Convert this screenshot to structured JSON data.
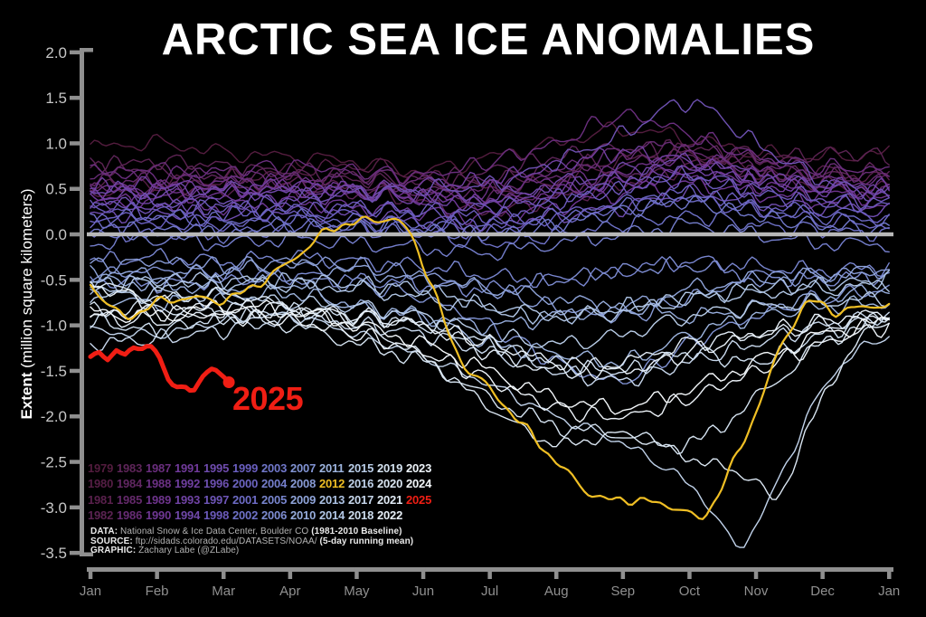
{
  "title": "ARCTIC SEA ICE ANOMALIES",
  "y_axis": {
    "label_bold": "Extent",
    "label_rest": " (million square kilometers)",
    "ticks": [
      "2.0",
      "1.5",
      "1.0",
      "0.5",
      "0.0",
      "-0.5",
      "-1.0",
      "-1.5",
      "-2.0",
      "-2.5",
      "-3.0",
      "-3.5"
    ]
  },
  "x_axis": {
    "ticks": [
      "Jan",
      "Feb",
      "Mar",
      "Apr",
      "May",
      "Jun",
      "Jul",
      "Aug",
      "Sep",
      "Oct",
      "Nov",
      "Dec",
      "Jan"
    ]
  },
  "credits": [
    {
      "label": "DATA:",
      "text": " National Snow & Ice Data Center, Boulder CO ",
      "suffix": "(1981-2010 Baseline)"
    },
    {
      "label": "SOURCE:",
      "text": " ftp://sidads.colorado.edu/DATASETS/NOAA/ ",
      "suffix": "(5-day running mean)"
    },
    {
      "label": "GRAPHIC:",
      "text": " Zachary Labe (@ZLabe)",
      "suffix": ""
    }
  ],
  "colors": {
    "background": "#000000",
    "title": "#ffffff",
    "zero_line": "#b8b8b8",
    "axis": "#8f8f8f",
    "y_tick_label": "#c6c6c6",
    "month_label": "#909090",
    "highlight_2012": "#f0bf24",
    "highlight_2025": "#f01e14"
  },
  "chart_data": {
    "type": "line",
    "title": "ARCTIC SEA ICE ANOMALIES",
    "ylabel": "Extent (million square kilometers)",
    "ylim": [
      -3.5,
      2.0
    ],
    "categories": [
      "Jan",
      "Feb",
      "Mar",
      "Apr",
      "May",
      "Jun",
      "Jul",
      "Aug",
      "Sep",
      "Oct",
      "Nov",
      "Dec",
      "Jan"
    ],
    "x_unit": "month index, 0 = Jan 1 through 12 = following Jan",
    "zero_baseline": 0.0,
    "grid": "off",
    "legend_position": "lower-left, 4-row column-major year grid",
    "highlight_label": "2025",
    "series": [
      {
        "name": "1979",
        "color": "#531c3e",
        "values": [
          0.95,
          1.0,
          0.9,
          0.85,
          0.8,
          0.7,
          0.85,
          1.0,
          1.15,
          1.05,
          0.9,
          0.85,
          0.9
        ]
      },
      {
        "name": "1980",
        "color": "#561e45",
        "values": [
          0.45,
          0.55,
          0.6,
          0.7,
          0.75,
          0.65,
          0.5,
          0.6,
          0.8,
          0.9,
          0.7,
          0.55,
          0.5
        ]
      },
      {
        "name": "1981",
        "color": "#59204c",
        "values": [
          0.55,
          0.45,
          0.5,
          0.55,
          0.5,
          0.35,
          0.25,
          0.4,
          0.55,
          0.75,
          0.9,
          0.7,
          0.6
        ]
      },
      {
        "name": "1982",
        "color": "#5b2352",
        "values": [
          0.7,
          0.8,
          0.75,
          0.65,
          0.6,
          0.55,
          0.6,
          0.7,
          0.85,
          0.95,
          0.8,
          0.9,
          0.85
        ]
      },
      {
        "name": "1983",
        "color": "#5e2559",
        "values": [
          0.8,
          0.7,
          0.65,
          0.7,
          0.65,
          0.6,
          0.7,
          0.85,
          0.95,
          0.85,
          0.7,
          0.65,
          0.7
        ]
      },
      {
        "name": "1984",
        "color": "#612762",
        "values": [
          0.6,
          0.5,
          0.55,
          0.5,
          0.45,
          0.5,
          0.4,
          0.5,
          0.65,
          0.8,
          0.65,
          0.5,
          0.45
        ]
      },
      {
        "name": "1985",
        "color": "#64296b",
        "values": [
          0.5,
          0.6,
          0.55,
          0.6,
          0.55,
          0.45,
          0.5,
          0.65,
          0.75,
          0.9,
          0.75,
          0.65,
          0.6
        ]
      },
      {
        "name": "1986",
        "color": "#672c75",
        "values": [
          0.65,
          0.7,
          0.65,
          0.6,
          0.65,
          0.6,
          0.55,
          0.7,
          0.9,
          1.0,
          0.85,
          0.7,
          0.65
        ]
      },
      {
        "name": "1987",
        "color": "#6a2e7e",
        "values": [
          0.7,
          0.65,
          0.7,
          0.75,
          0.7,
          0.65,
          0.8,
          1.0,
          1.3,
          1.1,
          0.85,
          0.75,
          0.7
        ]
      },
      {
        "name": "1988",
        "color": "#6c3185",
        "values": [
          0.55,
          0.5,
          0.6,
          0.55,
          0.5,
          0.45,
          0.5,
          0.6,
          0.7,
          0.85,
          0.7,
          0.6,
          0.55
        ]
      },
      {
        "name": "1989",
        "color": "#6e348d",
        "values": [
          0.35,
          0.4,
          0.45,
          0.5,
          0.45,
          0.4,
          0.35,
          0.45,
          0.55,
          0.65,
          0.55,
          0.45,
          0.4
        ]
      },
      {
        "name": "1990",
        "color": "#6f3794",
        "values": [
          0.4,
          0.35,
          0.3,
          0.35,
          0.3,
          0.25,
          0.2,
          0.3,
          0.45,
          0.55,
          0.45,
          0.35,
          0.3
        ]
      },
      {
        "name": "1991",
        "color": "#713a9b",
        "values": [
          0.45,
          0.5,
          0.45,
          0.4,
          0.45,
          0.4,
          0.35,
          0.45,
          0.6,
          0.7,
          0.55,
          0.5,
          0.45
        ]
      },
      {
        "name": "1992",
        "color": "#703fa0",
        "values": [
          0.5,
          0.55,
          0.5,
          0.55,
          0.5,
          0.55,
          0.6,
          0.75,
          0.9,
          0.8,
          0.65,
          0.55,
          0.5
        ]
      },
      {
        "name": "1993",
        "color": "#7043a5",
        "values": [
          0.45,
          0.4,
          0.45,
          0.5,
          0.45,
          0.4,
          0.35,
          0.5,
          0.6,
          0.7,
          0.6,
          0.5,
          0.45
        ]
      },
      {
        "name": "1994",
        "color": "#7048a9",
        "values": [
          0.5,
          0.45,
          0.5,
          0.45,
          0.5,
          0.45,
          0.4,
          0.55,
          0.7,
          0.8,
          0.65,
          0.55,
          0.5
        ]
      },
      {
        "name": "1995",
        "color": "#6f4cae",
        "values": [
          0.2,
          0.25,
          0.2,
          0.25,
          0.2,
          0.15,
          0.1,
          0.2,
          0.3,
          0.45,
          0.35,
          0.3,
          0.25
        ]
      },
      {
        "name": "1996",
        "color": "#6e51b2",
        "values": [
          0.35,
          0.3,
          0.35,
          0.4,
          0.45,
          0.5,
          0.55,
          0.8,
          1.1,
          1.45,
          1.0,
          0.6,
          0.4
        ]
      },
      {
        "name": "1997",
        "color": "#6d55b7",
        "values": [
          0.3,
          0.35,
          0.3,
          0.35,
          0.3,
          0.25,
          0.3,
          0.4,
          0.55,
          0.65,
          0.5,
          0.4,
          0.35
        ]
      },
      {
        "name": "1998",
        "color": "#6b5abb",
        "values": [
          0.3,
          0.25,
          0.3,
          0.25,
          0.3,
          0.25,
          0.2,
          0.35,
          0.5,
          0.6,
          0.45,
          0.35,
          0.3
        ]
      },
      {
        "name": "1999",
        "color": "#6a5fc0",
        "values": [
          0.2,
          0.15,
          0.2,
          0.25,
          0.2,
          0.15,
          0.1,
          0.2,
          0.35,
          0.45,
          0.3,
          0.25,
          0.2
        ]
      },
      {
        "name": "2000",
        "color": "#6c65c2",
        "values": [
          0.1,
          0.15,
          0.1,
          0.15,
          0.1,
          0.05,
          0.1,
          0.2,
          0.3,
          0.4,
          0.25,
          0.15,
          0.1
        ]
      },
      {
        "name": "2001",
        "color": "#6d6bc5",
        "values": [
          0.15,
          0.2,
          0.15,
          0.2,
          0.15,
          0.1,
          0.05,
          0.15,
          0.3,
          0.4,
          0.3,
          0.2,
          0.15
        ]
      },
      {
        "name": "2002",
        "color": "#6e71c7",
        "values": [
          0.05,
          0.0,
          0.05,
          0.1,
          0.05,
          0.0,
          -0.1,
          0.0,
          0.1,
          0.2,
          0.1,
          0.05,
          0.0
        ]
      },
      {
        "name": "2003",
        "color": "#7077c9",
        "values": [
          0.0,
          0.05,
          0.0,
          0.05,
          0.1,
          0.05,
          0.0,
          0.1,
          0.25,
          0.35,
          0.2,
          0.1,
          0.05
        ]
      },
      {
        "name": "2004",
        "color": "#747ecc",
        "values": [
          -0.1,
          -0.05,
          -0.1,
          -0.05,
          -0.1,
          -0.15,
          -0.2,
          -0.1,
          0.0,
          0.1,
          0.0,
          -0.1,
          -0.1
        ]
      },
      {
        "name": "2005",
        "color": "#7885ce",
        "values": [
          -0.3,
          -0.25,
          -0.3,
          -0.25,
          -0.3,
          -0.35,
          -0.45,
          -0.5,
          -0.4,
          -0.3,
          -0.35,
          -0.4,
          -0.35
        ]
      },
      {
        "name": "2006",
        "color": "#7d8cd1",
        "values": [
          -0.5,
          -0.55,
          -0.5,
          -0.45,
          -0.5,
          -0.55,
          -0.6,
          -0.5,
          -0.4,
          -0.35,
          -0.45,
          -0.5,
          -0.45
        ]
      },
      {
        "name": "2007",
        "color": "#8193d3",
        "values": [
          -0.45,
          -0.4,
          -0.45,
          -0.5,
          -0.55,
          -0.7,
          -1.0,
          -1.4,
          -1.6,
          -1.2,
          -0.9,
          -0.7,
          -0.6
        ]
      },
      {
        "name": "2008",
        "color": "#889bd6",
        "values": [
          -0.35,
          -0.3,
          -0.35,
          -0.3,
          -0.35,
          -0.45,
          -0.6,
          -0.8,
          -0.9,
          -0.7,
          -0.5,
          -0.45,
          -0.4
        ]
      },
      {
        "name": "2009",
        "color": "#8fa4d9",
        "values": [
          -0.4,
          -0.45,
          -0.4,
          -0.35,
          -0.4,
          -0.5,
          -0.6,
          -0.7,
          -0.8,
          -0.6,
          -0.5,
          -0.45,
          -0.4
        ]
      },
      {
        "name": "2010",
        "color": "#96acdb",
        "values": [
          -0.5,
          -0.55,
          -0.6,
          -0.55,
          -0.8,
          -0.9,
          -1.0,
          -0.9,
          -0.8,
          -0.9,
          -0.8,
          -0.7,
          -0.6
        ]
      },
      {
        "name": "2011",
        "color": "#9db4de",
        "values": [
          -0.7,
          -0.75,
          -0.7,
          -0.65,
          -0.8,
          -0.9,
          -1.2,
          -1.3,
          -1.4,
          -1.1,
          -0.9,
          -0.8,
          -0.75
        ]
      },
      {
        "name": "2012",
        "color": "#f0bf24",
        "width": 2.2,
        "noise": 0.03,
        "z": 90,
        "x": [
          0,
          0.5,
          1,
          1.5,
          2,
          2.5,
          3,
          3.6,
          4.2,
          4.7,
          5.1,
          5.5,
          6,
          6.5,
          7,
          7.6,
          8.2,
          8.8,
          9.2,
          9.6,
          10,
          10.4,
          10.8,
          11.2,
          11.6,
          12
        ],
        "values": [
          -0.55,
          -0.9,
          -0.75,
          -0.7,
          -0.72,
          -0.55,
          -0.3,
          0.05,
          0.15,
          0.1,
          -0.5,
          -1.3,
          -1.7,
          -2.1,
          -2.5,
          -2.88,
          -2.92,
          -3.0,
          -3.1,
          -2.6,
          -1.95,
          -1.2,
          -0.75,
          -0.85,
          -0.8,
          -0.77
        ]
      },
      {
        "name": "2013",
        "color": "#abc1e3",
        "values": [
          -0.55,
          -0.5,
          -0.55,
          -0.5,
          -0.55,
          -0.6,
          -0.8,
          -0.9,
          -0.8,
          -0.7,
          -0.6,
          -0.55,
          -0.5
        ]
      },
      {
        "name": "2014",
        "color": "#b2c7e6",
        "values": [
          -0.6,
          -0.55,
          -0.5,
          -0.55,
          -0.6,
          -0.7,
          -0.8,
          -0.9,
          -0.85,
          -0.7,
          -0.65,
          -0.6,
          -0.55
        ]
      },
      {
        "name": "2015",
        "color": "#b9cde8",
        "values": [
          -0.7,
          -0.65,
          -0.7,
          -0.75,
          -0.8,
          -0.9,
          -1.1,
          -1.2,
          -1.1,
          -0.9,
          -0.8,
          -0.75,
          -0.7
        ]
      },
      {
        "name": "2016",
        "color": "#c0d2ea",
        "noise": 0.035,
        "x": [
          0,
          1,
          2,
          3,
          4,
          5,
          6,
          7,
          8,
          9,
          9.4,
          9.7,
          10,
          10.4,
          11,
          11.5,
          12
        ],
        "values": [
          -1.05,
          -1.1,
          -0.95,
          -0.9,
          -1.1,
          -1.35,
          -1.65,
          -2.0,
          -2.3,
          -2.75,
          -3.1,
          -3.42,
          -3.2,
          -2.6,
          -1.7,
          -1.3,
          -1.1
        ]
      },
      {
        "name": "2017",
        "color": "#c7d7ec",
        "values": [
          -1.2,
          -1.15,
          -1.05,
          -0.95,
          -1.0,
          -1.1,
          -1.3,
          -1.5,
          -1.6,
          -1.4,
          -1.2,
          -1.0,
          -0.9
        ]
      },
      {
        "name": "2018",
        "color": "#cdddee",
        "values": [
          -0.95,
          -1.05,
          -0.9,
          -0.85,
          -0.9,
          -1.0,
          -1.2,
          -1.4,
          -1.5,
          -1.3,
          -1.4,
          -1.1,
          -0.9
        ]
      },
      {
        "name": "2019",
        "color": "#d4e2f0",
        "values": [
          -0.85,
          -0.8,
          -0.9,
          -1.0,
          -1.2,
          -1.4,
          -1.8,
          -2.1,
          -2.2,
          -2.3,
          -1.8,
          -1.2,
          -0.9
        ]
      },
      {
        "name": "2020",
        "color": "#dae6f2",
        "noise": 0.04,
        "x": [
          0,
          1,
          2,
          3,
          4,
          5,
          6,
          7,
          8,
          9,
          10,
          10.3,
          10.8,
          11.5,
          12
        ],
        "values": [
          -0.5,
          -0.7,
          -0.65,
          -0.8,
          -1.0,
          -1.35,
          -1.9,
          -2.3,
          -2.2,
          -2.45,
          -2.7,
          -2.92,
          -2.1,
          -1.2,
          -0.95
        ]
      },
      {
        "name": "2021",
        "color": "#e0eaf5",
        "values": [
          -0.9,
          -0.95,
          -0.85,
          -0.8,
          -0.9,
          -1.0,
          -1.3,
          -1.5,
          -1.4,
          -1.2,
          -1.1,
          -1.0,
          -0.9
        ]
      },
      {
        "name": "2022",
        "color": "#e7eff7",
        "values": [
          -0.55,
          -0.75,
          -0.8,
          -0.85,
          -0.9,
          -1.0,
          -1.2,
          -1.4,
          -1.5,
          -1.3,
          -1.1,
          -0.95,
          -0.85
        ]
      },
      {
        "name": "2023",
        "color": "#edf3f9",
        "values": [
          -0.9,
          -0.85,
          -0.9,
          -0.95,
          -1.1,
          -1.3,
          -1.6,
          -1.9,
          -2.0,
          -1.8,
          -1.5,
          -1.2,
          -1.0
        ]
      },
      {
        "name": "2024",
        "color": "#f4f8fb",
        "values": [
          -0.85,
          -0.9,
          -0.8,
          -0.85,
          -1.0,
          -1.2,
          -1.5,
          -1.8,
          -1.9,
          -1.7,
          -1.4,
          -1.1,
          -0.95
        ]
      },
      {
        "name": "2025",
        "color": "#f01e14",
        "width": 5,
        "noise": 0.018,
        "z": 99,
        "dot_end": true,
        "x": [
          0,
          0.13,
          0.26,
          0.39,
          0.52,
          0.65,
          0.78,
          0.91,
          1.04,
          1.17,
          1.3,
          1.43,
          1.56,
          1.69,
          1.82,
          1.95,
          2.08
        ],
        "values": [
          -1.33,
          -1.28,
          -1.38,
          -1.27,
          -1.35,
          -1.25,
          -1.24,
          -1.22,
          -1.35,
          -1.6,
          -1.71,
          -1.67,
          -1.7,
          -1.55,
          -1.47,
          -1.55,
          -1.65
        ]
      }
    ]
  }
}
